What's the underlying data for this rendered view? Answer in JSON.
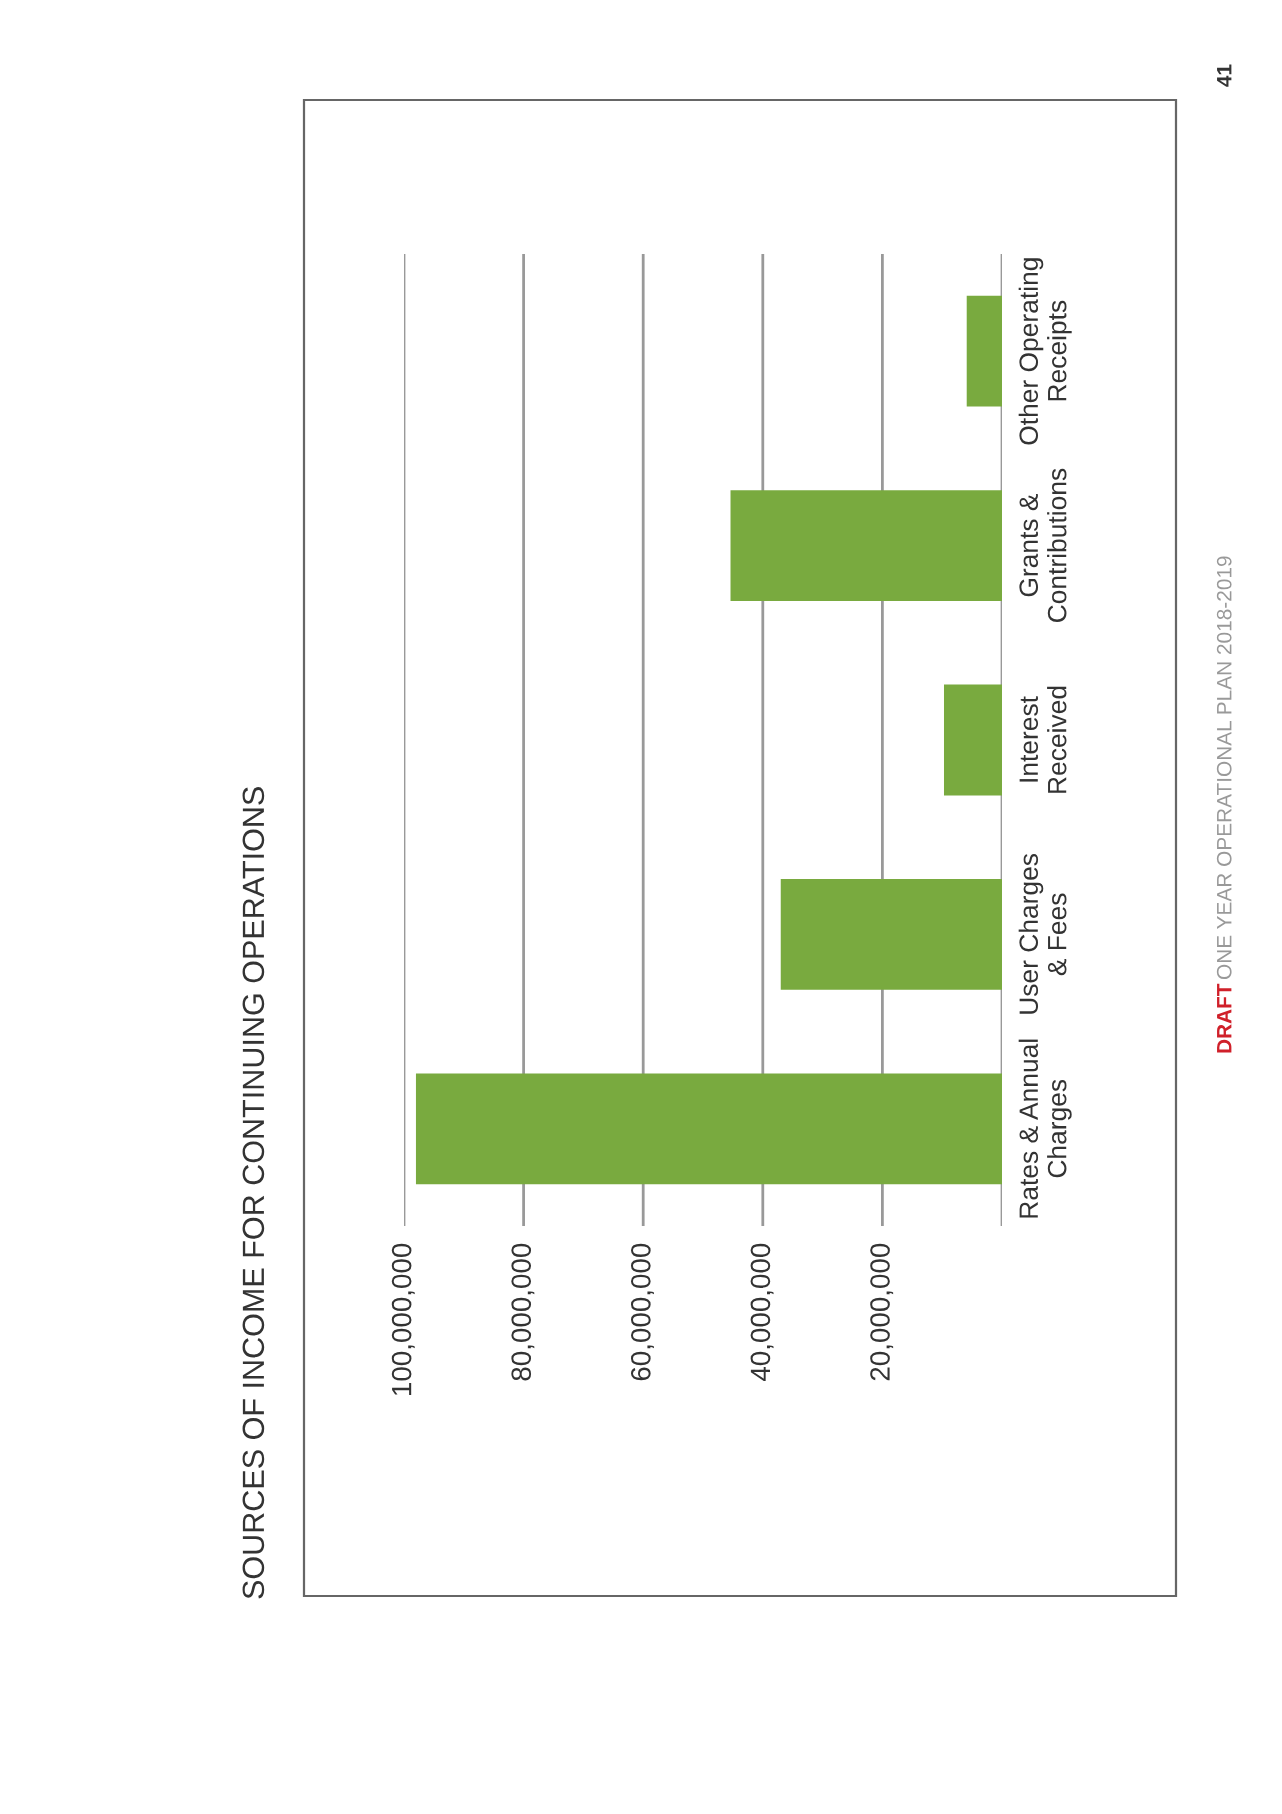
{
  "chart_data": {
    "type": "bar",
    "orientation": "horizontal",
    "title": "SOURCES OF INCOME FOR CONTINUING OPERATIONS",
    "categories": [
      "Other Operating Receipts",
      "Grants & Contributions",
      "Interest Received",
      "User Charges & Fees",
      "Rates & Annual Charges"
    ],
    "values": [
      5900000,
      45400000,
      9700000,
      37000000,
      98000000
    ],
    "color": "#79aa3f",
    "xlim": [
      100000000,
      0
    ],
    "xticks": [
      {
        "value": 0,
        "label": null
      },
      {
        "value": 20000000,
        "label": "20,000,000"
      },
      {
        "value": 40000000,
        "label": "40,000,000"
      },
      {
        "value": 60000000,
        "label": "60,000,000"
      },
      {
        "value": 80000000,
        "label": "80,000,000"
      },
      {
        "value": 100000000,
        "label": "100,000,000"
      }
    ],
    "grid": "x",
    "annotations": [
      "DRAFT",
      "ONE YEAR OPERATIONAL PLAN 2018-2019",
      "41"
    ]
  }
}
